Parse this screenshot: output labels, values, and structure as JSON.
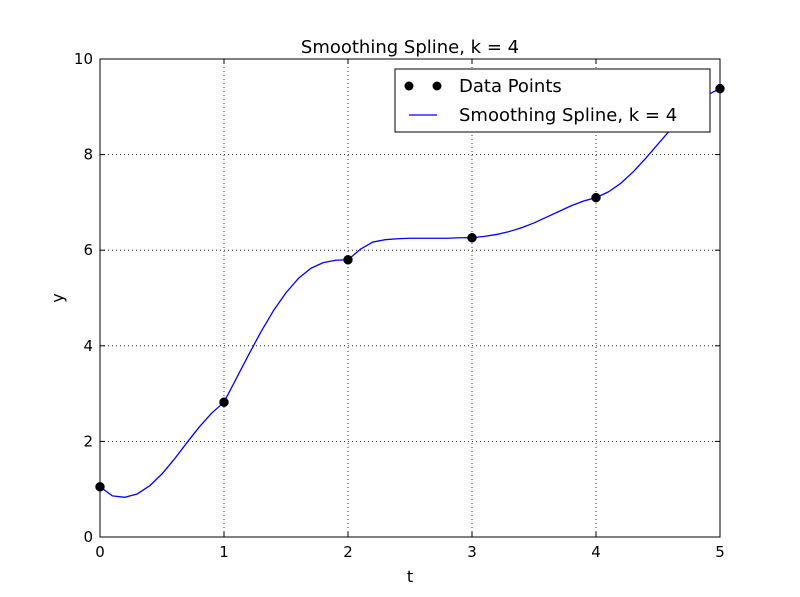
{
  "chart_data": {
    "type": "line",
    "title": "Smoothing Spline, k = 4",
    "xlabel": "t",
    "ylabel": "y",
    "xlim": [
      0,
      5
    ],
    "ylim": [
      0,
      10
    ],
    "xticks": [
      "0",
      "1",
      "2",
      "3",
      "4",
      "5"
    ],
    "yticks": [
      "0",
      "2",
      "4",
      "6",
      "8",
      "10"
    ],
    "grid": true,
    "legend_position": "top-right",
    "series": [
      {
        "name": "Data Points",
        "kind": "scatter",
        "color": "#000000",
        "x": [
          0,
          1,
          2,
          3,
          4,
          5
        ],
        "y": [
          1.05,
          2.82,
          5.8,
          6.26,
          7.1,
          9.38
        ]
      },
      {
        "name": "Smoothing Spline, k = 4",
        "kind": "line",
        "color": "#0000ff",
        "x": [
          0,
          0.1,
          0.2,
          0.3,
          0.4,
          0.5,
          0.6,
          0.7,
          0.8,
          0.9,
          1.0,
          1.1,
          1.2,
          1.3,
          1.4,
          1.5,
          1.6,
          1.7,
          1.8,
          1.9,
          2.0,
          2.1,
          2.2,
          2.3,
          2.4,
          2.5,
          2.6,
          2.7,
          2.8,
          2.9,
          3.0,
          3.1,
          3.2,
          3.3,
          3.4,
          3.5,
          3.6,
          3.7,
          3.8,
          3.9,
          4.0,
          4.1,
          4.2,
          4.3,
          4.4,
          4.5,
          4.6,
          4.7,
          4.8,
          4.9,
          5.0
        ],
        "y": [
          1.05,
          0.86,
          0.83,
          0.9,
          1.07,
          1.32,
          1.63,
          1.97,
          2.3,
          2.59,
          2.82,
          3.32,
          3.82,
          4.3,
          4.74,
          5.11,
          5.41,
          5.62,
          5.74,
          5.79,
          5.8,
          6.02,
          6.17,
          6.22,
          6.24,
          6.25,
          6.25,
          6.25,
          6.25,
          6.26,
          6.26,
          6.29,
          6.33,
          6.39,
          6.47,
          6.57,
          6.69,
          6.81,
          6.93,
          7.03,
          7.1,
          7.22,
          7.4,
          7.64,
          7.92,
          8.22,
          8.52,
          8.8,
          9.05,
          9.25,
          9.38
        ]
      }
    ]
  }
}
